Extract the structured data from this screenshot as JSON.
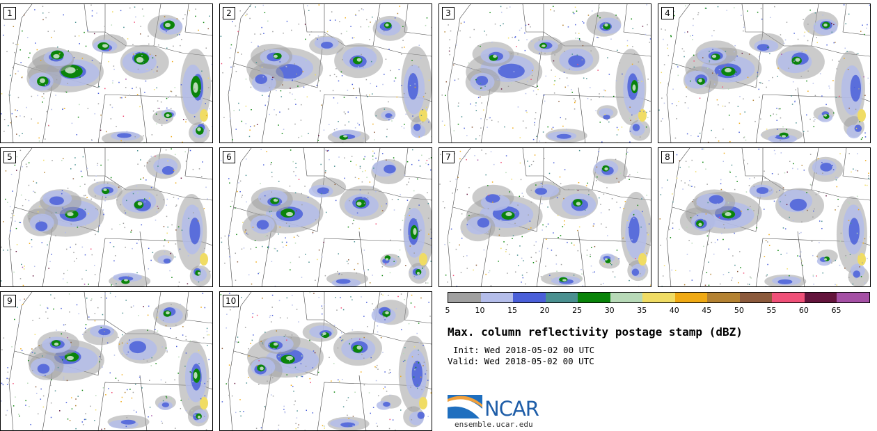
{
  "panels": [
    {
      "label": "1",
      "intensity": 1.0
    },
    {
      "label": "2",
      "intensity": 0.55
    },
    {
      "label": "3",
      "intensity": 0.55
    },
    {
      "label": "4",
      "intensity": 0.6
    },
    {
      "label": "5",
      "intensity": 0.55
    },
    {
      "label": "6",
      "intensity": 0.6
    },
    {
      "label": "7",
      "intensity": 0.55
    },
    {
      "label": "8",
      "intensity": 0.55
    },
    {
      "label": "9",
      "intensity": 0.6
    },
    {
      "label": "10",
      "intensity": 0.6
    }
  ],
  "colorbar": {
    "colors": [
      "#a0a0a0",
      "#b4bdea",
      "#4a5fd9",
      "#4a9090",
      "#0a840a",
      "#b7d9b7",
      "#f0dc64",
      "#f0aa14",
      "#b48232",
      "#8c5a3c",
      "#f05078",
      "#64143c",
      "#a550a5"
    ],
    "ticks": [
      "5",
      "10",
      "15",
      "20",
      "25",
      "30",
      "35",
      "40",
      "45",
      "50",
      "55",
      "60",
      "65"
    ]
  },
  "title": "Max. column reflectivity postage stamp (dBZ)",
  "init": "Init: Wed 2018-05-02 00 UTC",
  "valid": "Valid: Wed 2018-05-02 00 UTC",
  "logo": {
    "text": "NCAR",
    "site": "ensemble.ucar.edu"
  }
}
